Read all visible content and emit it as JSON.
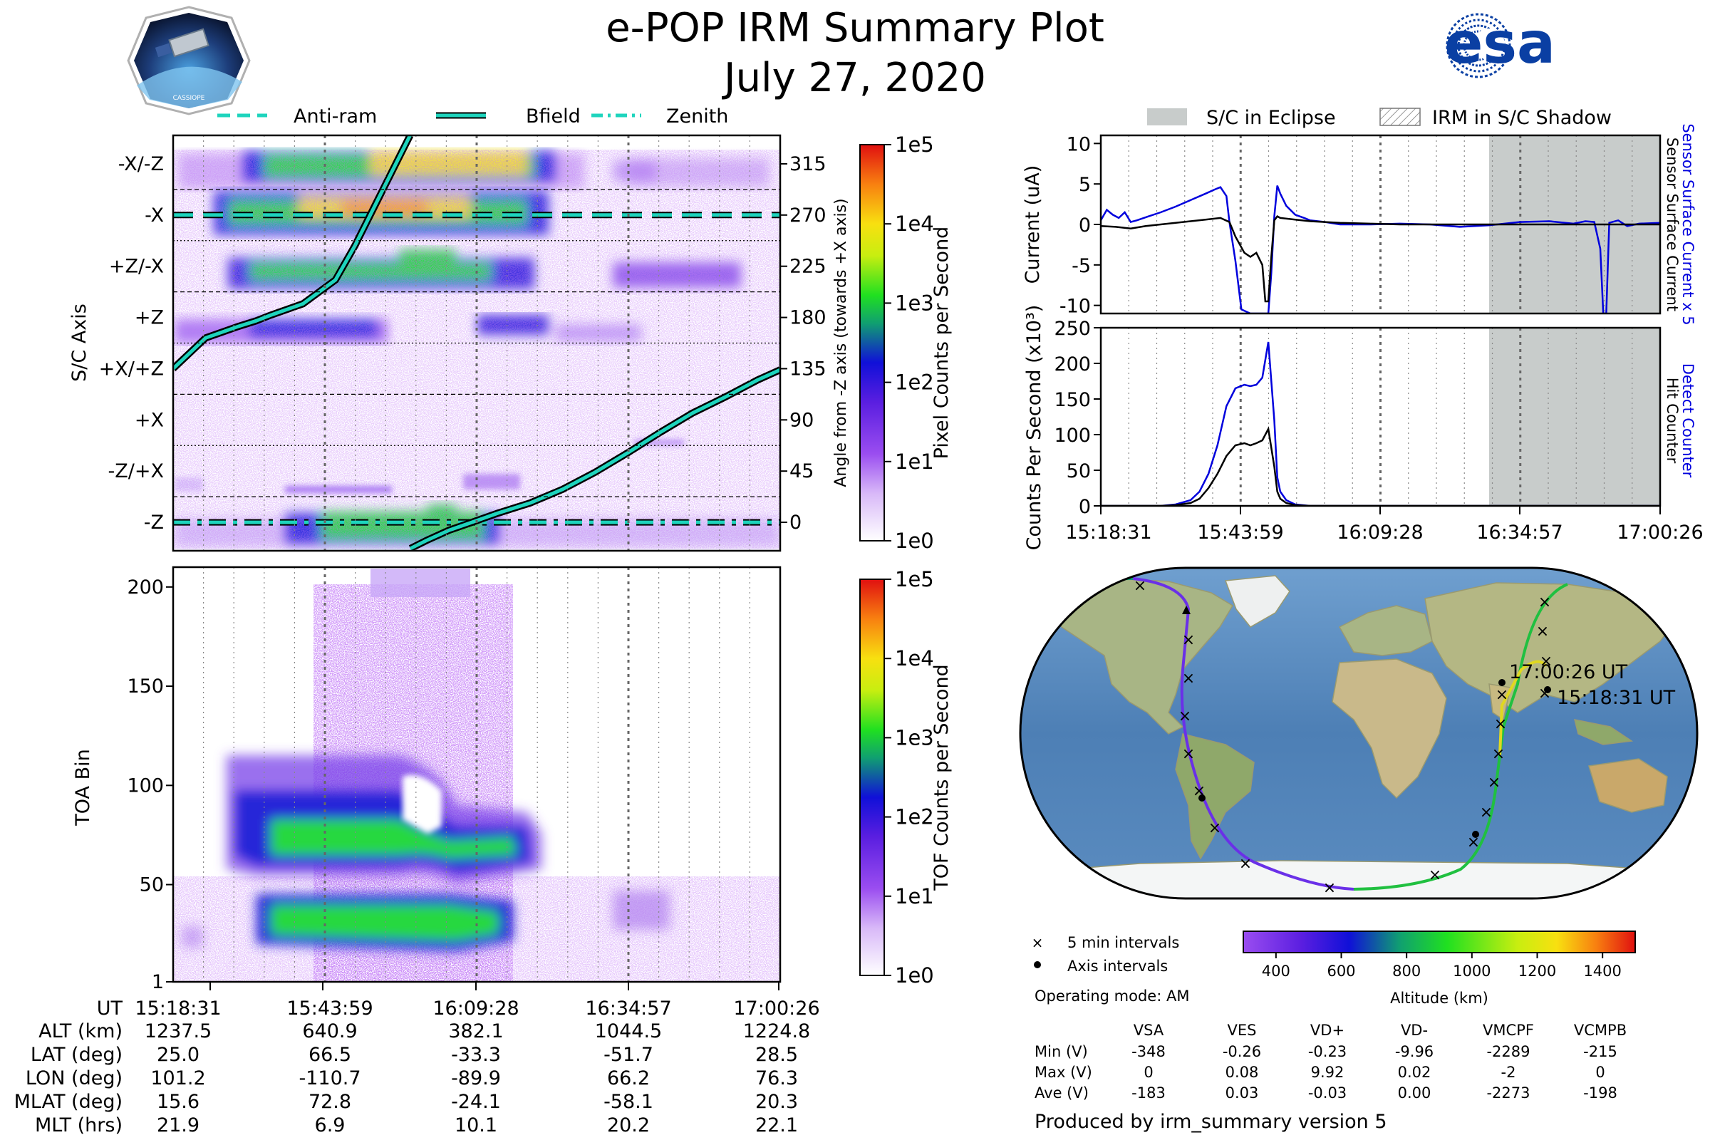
{
  "header": {
    "title": "e-POP IRM Summary Plot",
    "date": "July 27, 2020",
    "mission_logo_text": "CASSIOPE",
    "agency_logo_text": "esa"
  },
  "colors": {
    "anti_ram": "#1ed4bd",
    "bfield": "#1ed4bd",
    "zenith": "#1ed4bd",
    "sensor_current": "#0000dd",
    "surface_current": "#000000",
    "eclipse": "#c8cccb",
    "esa_blue": "#0a3fa3"
  },
  "legend_top": {
    "anti_ram": "Anti-ram",
    "bfield": "Bfield",
    "zenith": "Zenith"
  },
  "legend_right": {
    "eclipse": "S/C in Eclipse",
    "shadow": "IRM in S/C Shadow"
  },
  "time_axis": {
    "ticks": [
      "15:18:31",
      "15:43:59",
      "16:09:28",
      "16:34:57",
      "17:00:26"
    ]
  },
  "chart_data": [
    {
      "type": "heatmap",
      "name": "pixel-counts",
      "ylabel": "S/C Axis",
      "y_categories": [
        "-X/-Z",
        "-X",
        "+Z/-X",
        "+Z",
        "+X/+Z",
        "+X",
        "-Z/+X",
        "-Z"
      ],
      "right_ylabel": "Angle from -Z axis (towards +X axis)",
      "right_ticks": [
        315,
        270,
        225,
        180,
        135,
        90,
        45,
        0
      ],
      "right_ylim": [
        -25,
        340
      ],
      "colorbar_label": "Pixel Counts per Second",
      "colorbar_ticks": [
        "1e5",
        "1e4",
        "1e3",
        "1e2",
        "1e1",
        "1e0"
      ],
      "anti_ram_deg": 270,
      "zenith_deg": 0,
      "bfield": {
        "x_min": [
          0,
          10,
          20,
          25.5,
          30,
          40,
          50,
          56,
          63,
          70,
          73,
          73.1,
          78,
          85,
          92,
          100,
          110,
          120,
          130,
          140,
          150,
          160,
          170,
          180,
          187
        ],
        "angle_deg": [
          135,
          162,
          172,
          177,
          182,
          192,
          213,
          243,
          283,
          323,
          340,
          -23,
          -16,
          -7,
          0,
          8,
          17,
          29,
          44,
          61,
          79,
          96,
          110,
          125,
          134
        ]
      }
    },
    {
      "type": "line",
      "name": "current",
      "ylabel": "Current (uA)",
      "ylim": [
        -11,
        11
      ],
      "yticks": [
        10,
        5,
        0,
        -5,
        -10
      ],
      "right_label": "Sensor Surface Current x 5",
      "right_label_2": "Sensor Surface Current",
      "series": [
        {
          "name": "Sensor Surface Current x 5",
          "x_min": [
            0,
            2,
            4,
            6,
            8,
            10,
            12,
            16,
            20,
            25,
            30,
            35,
            38,
            40,
            42,
            43,
            45,
            47,
            50,
            52,
            54,
            56,
            57,
            58,
            59,
            60,
            62,
            65,
            68,
            70,
            75,
            80,
            90,
            100,
            110,
            120,
            130,
            140,
            150,
            158,
            162,
            165,
            167,
            168,
            169,
            170,
            173,
            176,
            180,
            187
          ],
          "y": [
            0.5,
            1.8,
            1.2,
            0.8,
            1.5,
            0.3,
            0.5,
            1.0,
            1.5,
            2.2,
            3.0,
            3.8,
            4.3,
            4.6,
            3.5,
            0.3,
            -4.5,
            -10.5,
            -11,
            -11,
            -11,
            -11,
            -6,
            1.0,
            4.8,
            3.8,
            2.3,
            1.2,
            0.8,
            0.5,
            0.3,
            0.0,
            0.0,
            0.1,
            0.0,
            -0.3,
            -0.1,
            0.3,
            0.4,
            0.1,
            0.4,
            0.3,
            -3.0,
            -11,
            -11,
            0.2,
            0.5,
            -0.2,
            0.1,
            0.2
          ]
        },
        {
          "name": "Sensor Surface Current",
          "x_min": [
            0,
            5,
            10,
            15,
            20,
            25,
            30,
            35,
            40,
            43,
            45,
            48,
            50,
            52,
            54,
            55,
            56,
            57,
            58,
            59,
            60,
            65,
            70,
            80,
            90,
            100,
            120,
            140,
            160,
            170,
            180,
            187
          ],
          "y": [
            -0.2,
            -0.3,
            -0.5,
            -0.2,
            0.0,
            0.2,
            0.4,
            0.6,
            0.8,
            0.3,
            -1.5,
            -3.5,
            -4.0,
            -3.5,
            -5.0,
            -9.5,
            -9.5,
            -4.0,
            0.5,
            1.0,
            0.8,
            0.6,
            0.4,
            0.2,
            0.1,
            0.0,
            0.0,
            0.0,
            0.0,
            0.0,
            0.0,
            0.0
          ]
        }
      ]
    },
    {
      "type": "line",
      "name": "counts",
      "ylabel": "Counts Per Second (x10³)",
      "ylim": [
        0,
        250
      ],
      "yticks": [
        250,
        200,
        150,
        100,
        50,
        0
      ],
      "right_label": "Detect Counter",
      "right_label_2": "Hit Counter",
      "series": [
        {
          "name": "Detect Counter",
          "x_min": [
            0,
            20,
            25,
            30,
            33,
            36,
            39,
            42,
            45,
            48,
            50,
            52,
            54,
            56,
            58,
            59,
            60,
            62,
            65,
            70,
            80,
            187
          ],
          "y": [
            0,
            0,
            2,
            8,
            20,
            45,
            85,
            140,
            165,
            170,
            168,
            170,
            180,
            230,
            120,
            40,
            20,
            8,
            2,
            0,
            0,
            0
          ]
        },
        {
          "name": "Hit Counter",
          "x_min": [
            0,
            20,
            25,
            30,
            33,
            36,
            39,
            42,
            45,
            48,
            50,
            52,
            54,
            56,
            58,
            59,
            60,
            62,
            65,
            70,
            80,
            187
          ],
          "y": [
            0,
            0,
            1,
            4,
            10,
            25,
            45,
            70,
            85,
            88,
            85,
            88,
            92,
            108,
            55,
            20,
            10,
            4,
            1,
            0,
            0,
            0
          ]
        }
      ]
    },
    {
      "type": "heatmap",
      "name": "tof-counts",
      "ylabel": "TOA Bin",
      "yticks": [
        200,
        150,
        100,
        50,
        1
      ],
      "ylim": [
        1,
        210
      ],
      "colorbar_label": "TOF Counts per Second",
      "colorbar_ticks": [
        "1e5",
        "1e4",
        "1e3",
        "1e2",
        "1e1",
        "1e0"
      ]
    }
  ],
  "stats_table": {
    "header": "UT",
    "rows": [
      {
        "label": "ALT (km)",
        "values": [
          "1237.5",
          "640.9",
          "382.1",
          "1044.5",
          "1224.8"
        ]
      },
      {
        "label": "LAT (deg)",
        "values": [
          "25.0",
          "66.5",
          "-33.3",
          "-51.7",
          "28.5"
        ]
      },
      {
        "label": "LON (deg)",
        "values": [
          "101.2",
          "-110.7",
          "-89.9",
          "66.2",
          "76.3"
        ]
      },
      {
        "label": "MLAT (deg)",
        "values": [
          "15.6",
          "72.8",
          "-24.1",
          "-58.1",
          "20.3"
        ]
      },
      {
        "label": "MLT (hrs)",
        "values": [
          "21.9",
          "6.9",
          "10.1",
          "20.2",
          "22.1"
        ]
      }
    ]
  },
  "map": {
    "start_label": "15:18:31 UT",
    "end_label": "17:00:26 UT",
    "legend_5min": "5 min intervals",
    "legend_axis": "Axis intervals",
    "operating_mode": "Operating mode: AM",
    "colorbar_label": "Altitude (km)",
    "colorbar_ticks": [
      "400",
      "600",
      "800",
      "1000",
      "1200",
      "1400"
    ],
    "altitude_range": [
      300,
      1500
    ]
  },
  "voltage_table": {
    "columns": [
      "VSA",
      "VES",
      "VD+",
      "VD-",
      "VMCPF",
      "VCMPB"
    ],
    "rows": [
      {
        "label": "Min (V)",
        "values": [
          "-348",
          "-0.26",
          "-0.23",
          "-9.96",
          "-2289",
          "-215"
        ]
      },
      {
        "label": "Max (V)",
        "values": [
          "0",
          "0.08",
          "9.92",
          "0.02",
          "-2",
          "0"
        ]
      },
      {
        "label": "Ave (V)",
        "values": [
          "-183",
          "0.03",
          "-0.03",
          "0.00",
          "-2273",
          "-198"
        ]
      }
    ]
  },
  "footer": "Produced by irm_summary version 5"
}
